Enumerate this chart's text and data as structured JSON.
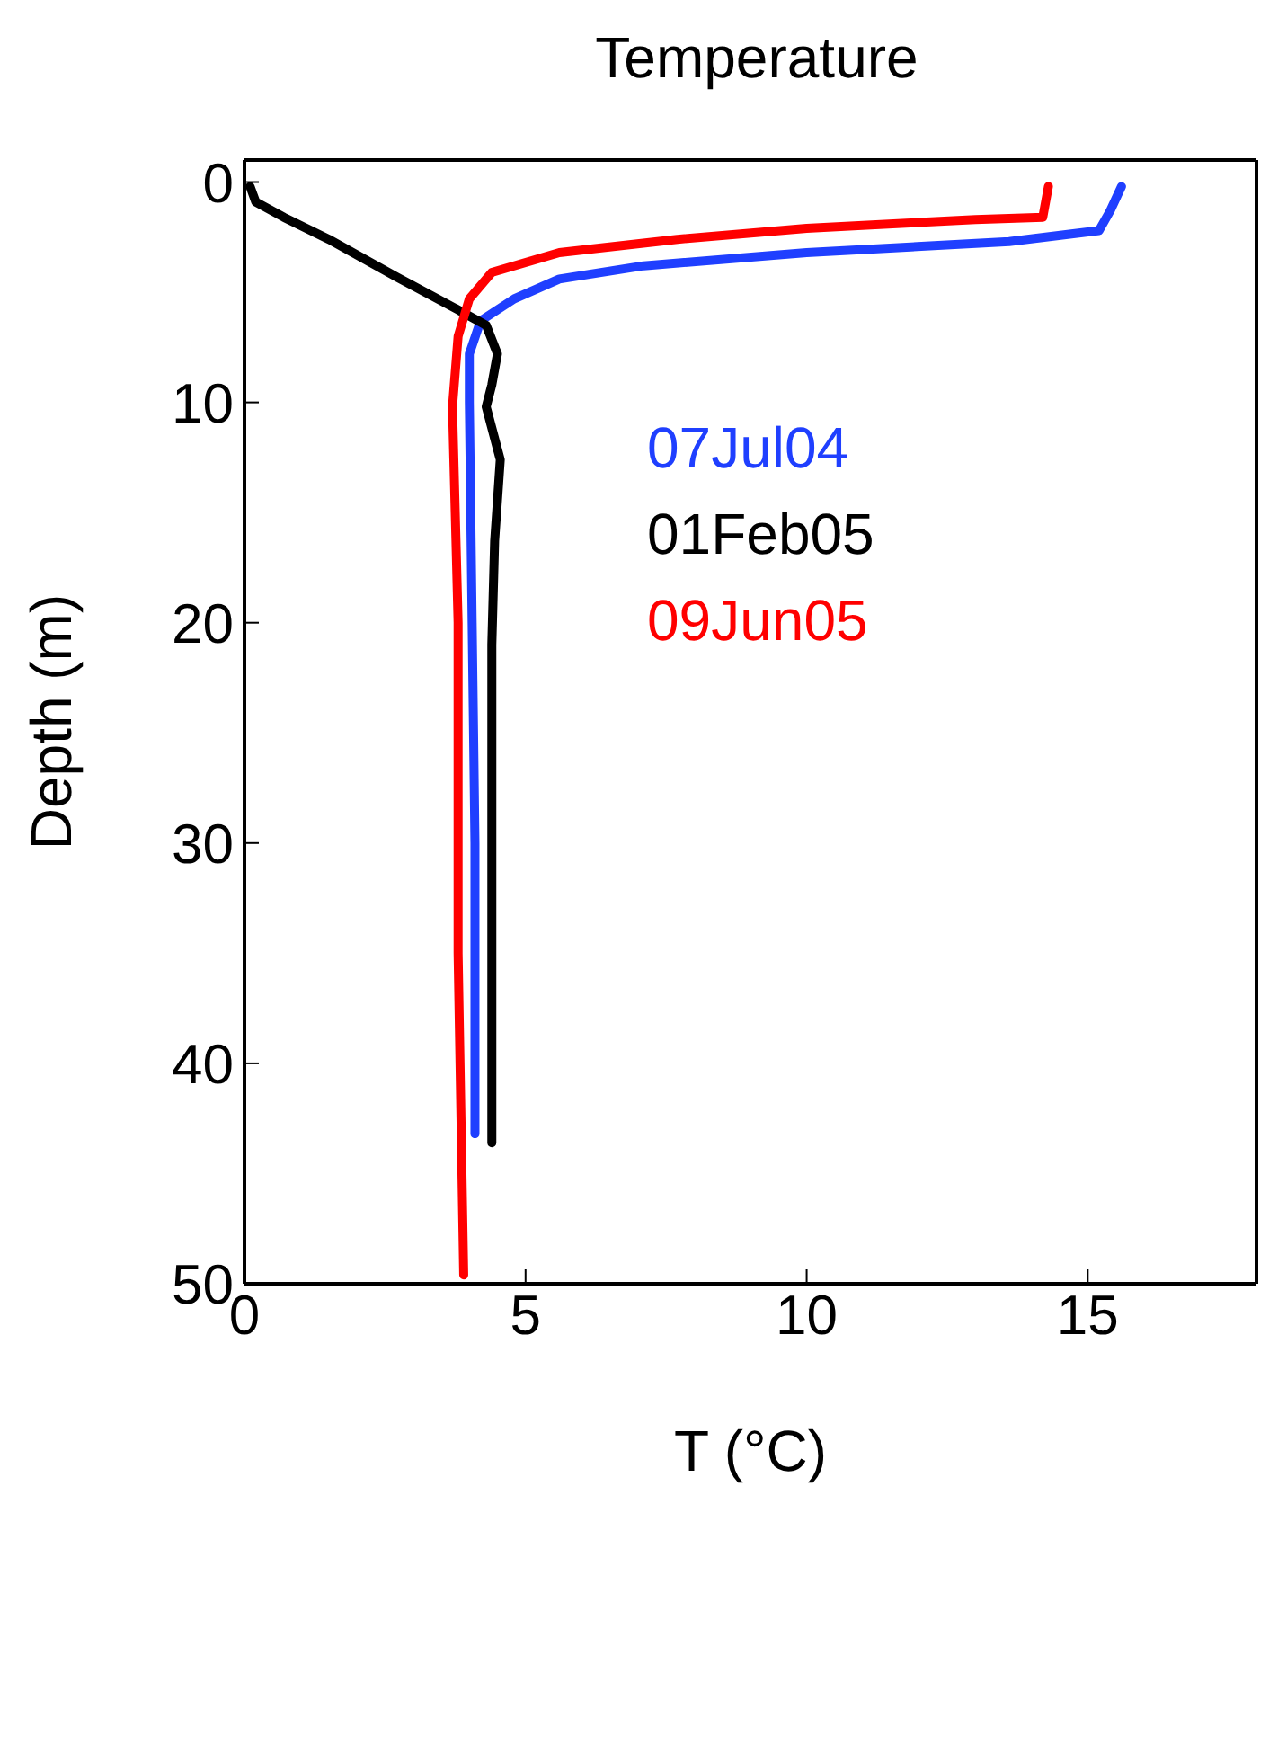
{
  "chart_data": {
    "type": "line",
    "title": "Temperature",
    "xlabel": "T (°C)",
    "ylabel": "Depth (m)",
    "xlim": [
      0,
      18
    ],
    "xticks": [
      0,
      5,
      10,
      15
    ],
    "ylim": [
      50,
      -1
    ],
    "yticks": [
      0,
      10,
      20,
      30,
      40,
      50
    ],
    "legend": "top right",
    "series": [
      {
        "name": "07Jul04",
        "color": "#1f3fff",
        "x": [
          15.6,
          15.4,
          15.2,
          13.6,
          10.0,
          7.1,
          5.6,
          4.8,
          4.2,
          4.0,
          4.0,
          4.05,
          4.1,
          4.1
        ],
        "values": [
          0.2,
          1.3,
          2.2,
          2.7,
          3.2,
          3.8,
          4.4,
          5.3,
          6.3,
          7.8,
          10,
          20,
          30,
          43.2
        ]
      },
      {
        "name": "01Feb05",
        "color": "#000000",
        "x": [
          0.1,
          0.2,
          0.7,
          1.5,
          2.7,
          3.8,
          4.3,
          4.5,
          4.4,
          4.3,
          4.55,
          4.45,
          4.4,
          4.4,
          4.4
        ],
        "values": [
          0.2,
          0.9,
          1.6,
          2.6,
          4.3,
          5.8,
          6.5,
          7.8,
          9.2,
          10.2,
          12.6,
          16.3,
          21,
          34.4,
          43.6
        ]
      },
      {
        "name": "09Jun05",
        "color": "#ff0000",
        "x": [
          14.3,
          14.2,
          13.0,
          10.0,
          7.7,
          5.6,
          4.4,
          4.0,
          3.8,
          3.7,
          3.8,
          3.8,
          3.9
        ],
        "values": [
          0.2,
          1.6,
          1.7,
          2.1,
          2.6,
          3.2,
          4.1,
          5.3,
          7.0,
          10.2,
          20,
          35,
          49.6
        ]
      }
    ]
  }
}
